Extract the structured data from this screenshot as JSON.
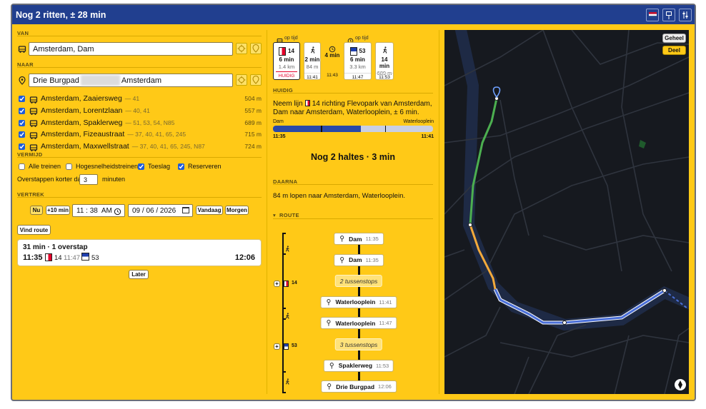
{
  "header": {
    "title": "Nog 2 ritten, ± 28 min"
  },
  "search": {
    "from": {
      "label": "VAN",
      "value": "Amsterdam, Dam"
    },
    "to": {
      "label": "NAAR",
      "value_before": "Drie Burgpad",
      "value_after": "Amsterdam"
    },
    "stops": [
      {
        "name": "Amsterdam, Zaaiersweg",
        "lines": "— 41",
        "distance": "504 m",
        "checked": true
      },
      {
        "name": "Amsterdam, Lorentzlaan",
        "lines": "— 40, 41",
        "distance": "557 m",
        "checked": true
      },
      {
        "name": "Amsterdam, Spaklerweg",
        "lines": "— 51, 53, 54, N85",
        "distance": "689 m",
        "checked": true
      },
      {
        "name": "Amsterdam, Fizeaustraat",
        "lines": "— 37, 40, 41, 65, 245",
        "distance": "715 m",
        "checked": true
      },
      {
        "name": "Amsterdam, Maxwellstraat",
        "lines": "— 37, 40, 41, 65, 245, N87",
        "distance": "724 m",
        "checked": true
      }
    ],
    "avoid": {
      "label": "VERMIJD",
      "options": [
        {
          "label": "Alle treinen",
          "checked": false
        },
        {
          "label": "Hogesnelheidstreinen",
          "checked": false
        },
        {
          "label": "Toeslag",
          "checked": true
        },
        {
          "label": "Reserveren",
          "checked": true
        }
      ]
    },
    "transfer": {
      "before": "Overstappen korter dan",
      "minutes": "3",
      "after": "minuten"
    },
    "departure": {
      "label": "VERTREK",
      "now": "Nu",
      "plus": "+10 min",
      "time": "11 : 38  AM",
      "date": "09 / 06 / 2026",
      "today": "Vandaag",
      "tomorrow": "Morgen"
    },
    "find_button": "Vind route"
  },
  "result": {
    "summary": "31 min · 1 overstap",
    "depart": "11:35",
    "line1": "14",
    "transfer_time": "11:47",
    "line2": "53",
    "arrive": "12:06",
    "later_button": "Later"
  },
  "trip": {
    "legs": [
      {
        "kind": "tram",
        "status": "op tijd",
        "line": "14",
        "duration": "6 min",
        "distance": "1.4 km",
        "badge": "HUIDIG"
      },
      {
        "kind": "walk",
        "duration": "2 min",
        "distance": "84 m",
        "time": "11:41"
      },
      {
        "kind": "wait",
        "duration": "4 min",
        "time": "11:43"
      },
      {
        "kind": "bus",
        "status": "op tijd",
        "line": "53",
        "duration": "6 min",
        "distance": "3.3 km",
        "time": "11:47"
      },
      {
        "kind": "walk",
        "duration": "14 min",
        "distance": "689 m",
        "time": "11:53"
      }
    ],
    "current": {
      "label": "HUIDIG",
      "instruction_before": "Neem lijn",
      "instruction_after": "14 richting Flevopark van Amsterdam, Dam naar Amsterdam, Waterlooplein, ± 6 min.",
      "from": "Dam",
      "to": "Waterlooplein",
      "from_time": "11:35",
      "to_time": "11:41",
      "progress_percent": 55,
      "remaining": "Nog 2 haltes · 3 min"
    },
    "next": {
      "label": "DAARNA",
      "text": "84 m lopen naar Amsterdam, Waterlooplein."
    },
    "route": {
      "label": "ROUTE",
      "lines": [
        "14",
        "53"
      ],
      "items": [
        {
          "stop": "Dam",
          "time": "11:35"
        },
        {
          "stop": "Dam",
          "time": "11:35"
        },
        {
          "between": "2 tussenstops"
        },
        {
          "stop": "Waterlooplein",
          "time": "11:41"
        },
        {
          "stop": "Waterlooplein",
          "time": "11:47"
        },
        {
          "between": "3 tussenstops"
        },
        {
          "stop": "Spaklerweg",
          "time": "11:53"
        },
        {
          "stop": "Drie Burgpad",
          "time": "12:06"
        }
      ]
    }
  },
  "map": {
    "buttons": [
      "Geheel",
      "Deel"
    ]
  }
}
